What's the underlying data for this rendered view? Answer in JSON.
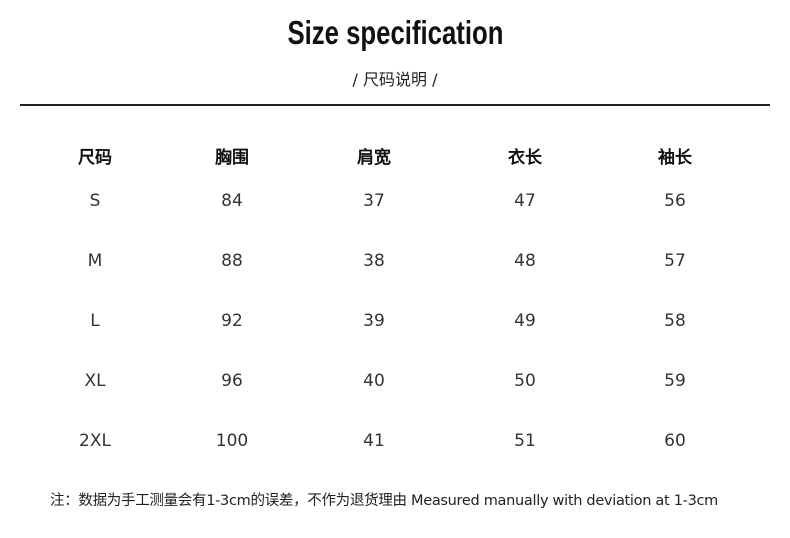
{
  "title": "Size specification",
  "subtitle": "/  尺码说明  /",
  "table": {
    "headers": [
      "尺码",
      "胸围",
      "肩宽",
      "衣长",
      "袖长"
    ],
    "rows": [
      [
        "S",
        "84",
        "37",
        "47",
        "56"
      ],
      [
        "M",
        "88",
        "38",
        "48",
        "57"
      ],
      [
        "L",
        "92",
        "39",
        "49",
        "58"
      ],
      [
        "XL",
        "96",
        "40",
        "50",
        "59"
      ],
      [
        "2XL",
        "100",
        "41",
        "51",
        "60"
      ]
    ]
  },
  "note": "注：数据为手工测量会有1-3cm的误差，不作为退货理由 Measured manually with deviation at 1-3cm"
}
